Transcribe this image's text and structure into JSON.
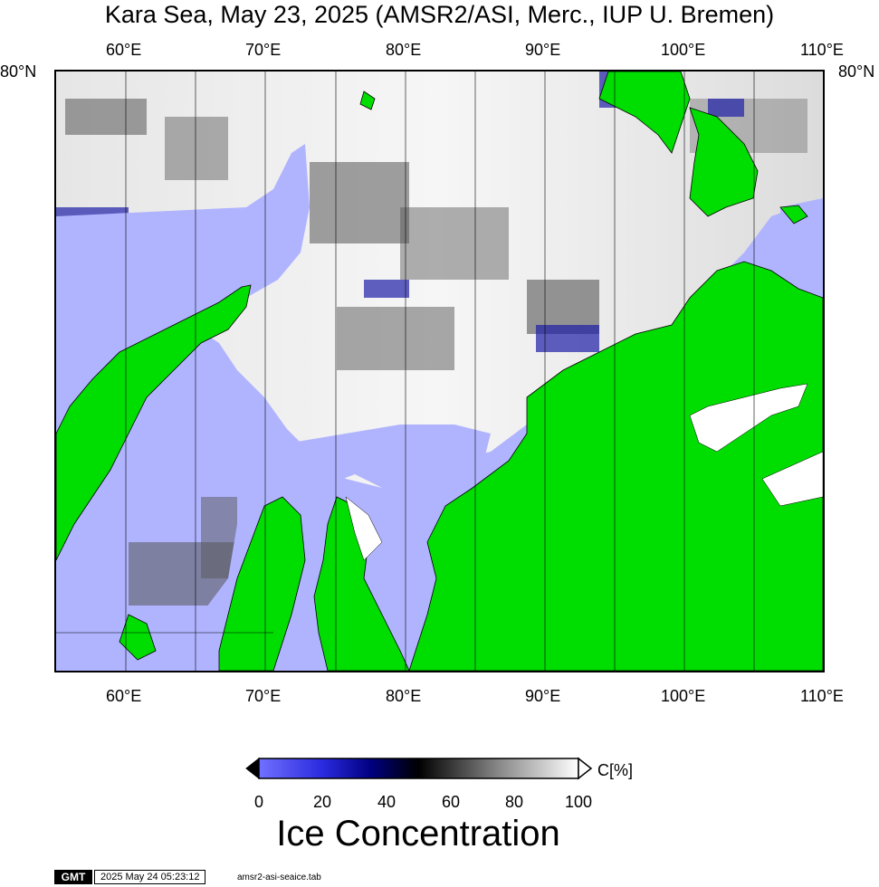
{
  "title": "Kara Sea, May 23, 2025 (AMSR2/ASI, Merc., IUP U. Bremen)",
  "lon_ticks": [
    "60°E",
    "70°E",
    "80°E",
    "90°E",
    "100°E",
    "110°E"
  ],
  "lat_label": "80°N",
  "colorbar": {
    "title": "Ice Concentration",
    "unit": "C[%]",
    "ticks": [
      "0",
      "20",
      "40",
      "60",
      "80",
      "100"
    ],
    "colors": {
      "low": "#2a2adf",
      "mid": "#000000",
      "high": "#ffffff",
      "no_ice": "#b0b4ff",
      "land": "#00dd00"
    }
  },
  "footer": {
    "logo": "GMT",
    "timestamp": "2025 May 24 05:23:12",
    "filename": "amsr2-asi-seaice.tab"
  }
}
